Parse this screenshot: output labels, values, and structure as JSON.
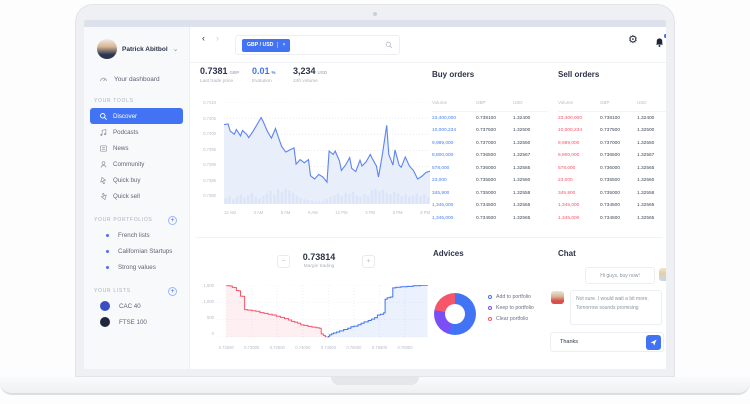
{
  "sidebar": {
    "user": {
      "name": "Patrick Abitbol"
    },
    "dashboard": {
      "label": "Your dashboard"
    },
    "sections": [
      {
        "title": "YOUR TOOLS",
        "add_button": false,
        "items": [
          {
            "label": "Discover",
            "icon": "search",
            "active": true
          },
          {
            "label": "Podcasts",
            "icon": "podcast"
          },
          {
            "label": "News",
            "icon": "news"
          },
          {
            "label": "Community",
            "icon": "community"
          },
          {
            "label": "Quick buy",
            "icon": "quick-buy"
          },
          {
            "label": "Quick sell",
            "icon": "quick-sell"
          }
        ]
      },
      {
        "title": "YOUR PORTFOLIOS",
        "add_button": true,
        "items": [
          {
            "label": "French lists",
            "bullet": "#4273f4"
          },
          {
            "label": "Californian Startups",
            "bullet": "#4273f4"
          },
          {
            "label": "Strong values",
            "bullet": "#4273f4"
          }
        ]
      },
      {
        "title": "YOUR LISTS",
        "add_button": true,
        "items": [
          {
            "label": "CAC 40",
            "swatch": "#3a4ec4"
          },
          {
            "label": "FTSE 100",
            "swatch": "#20263b"
          }
        ]
      }
    ]
  },
  "topbar": {
    "back": "‹",
    "forward": "›",
    "search": {
      "tag": "GBP / USD",
      "tag_close": "×"
    },
    "settings_glyph": "⚙"
  },
  "stats": [
    {
      "value": "0.7381",
      "unit": "GBP",
      "label": "Last trade price",
      "color": "#2d3448"
    },
    {
      "value": "0.01",
      "unit": "%",
      "label": "Evolution",
      "color": "#4273f4"
    },
    {
      "value": "3,234",
      "unit": "USD",
      "label": "24h volume",
      "color": "#2d3448"
    }
  ],
  "buy_orders": {
    "title": "Buy orders",
    "accent": "#4a7cf2",
    "columns": [
      "Volume",
      "GBP",
      "USD"
    ],
    "rows": [
      [
        "23,400,000",
        "0.738100",
        "1.32400"
      ],
      [
        "10,000,234",
        "0.737500",
        "1.32500"
      ],
      [
        "9,989,000",
        "0.737000",
        "1.32550"
      ],
      [
        "8,800,000",
        "0.736500",
        "1.32567"
      ],
      [
        "578,000",
        "0.736000",
        "1.32565"
      ],
      [
        "23,000",
        "0.735500",
        "1.32560"
      ],
      [
        "345,900",
        "0.735000",
        "1.32558"
      ],
      [
        "1,345,000",
        "0.734500",
        "1.32565"
      ],
      [
        "1,345,000",
        "0.734500",
        "1.32565"
      ]
    ]
  },
  "sell_orders": {
    "title": "Sell orders",
    "accent": "#f5566a",
    "columns": [
      "Volume",
      "GBP",
      "USD"
    ],
    "rows": [
      [
        "23,400,000",
        "0.738100",
        "1.32400"
      ],
      [
        "10,000,234",
        "0.737500",
        "1.32500"
      ],
      [
        "9,989,000",
        "0.737000",
        "1.32550"
      ],
      [
        "8,800,000",
        "0.736500",
        "1.32567"
      ],
      [
        "578,000",
        "0.736000",
        "1.32565"
      ],
      [
        "23,000",
        "0.735500",
        "1.32560"
      ],
      [
        "345,900",
        "0.735000",
        "1.32558"
      ],
      [
        "1,345,000",
        "0.734500",
        "1.32565"
      ],
      [
        "1,345,000",
        "0.734500",
        "1.32565"
      ]
    ]
  },
  "margin": {
    "value": "0.73814",
    "label": "Margin trading",
    "minus": "−",
    "plus": "+"
  },
  "advices": {
    "title": "Advices",
    "legend": [
      {
        "label": "Add to portfolio",
        "color": "#4273f4"
      },
      {
        "label": "Keep to portfolio",
        "color": "#7a4ff6"
      },
      {
        "label": "Clear portfolio",
        "color": "#f5566a"
      }
    ]
  },
  "chat": {
    "title": "Chat",
    "messages": [
      {
        "text": "Hi guys, buy now!",
        "side": "right",
        "avatar": "blonde"
      },
      {
        "text": "Not sure. I would wait a bit more. Tomorrow sounds promising",
        "side": "left",
        "avatar": "red-shirt"
      }
    ],
    "input_value": "Thanks"
  },
  "chart_data": [
    {
      "id": "price",
      "type": "area-line",
      "title": "GBP/USD intraday price",
      "line_color": "#5b83f2",
      "fill_color": "#e9eefb",
      "bar_color": "#dce5f8",
      "ylim": [
        0.738,
        0.741
      ],
      "y_ticks": [
        "0.7410",
        "0.7405",
        "0.7400",
        "0.7395",
        "0.7390",
        "0.7385",
        "0.7380"
      ],
      "x_ticks": [
        "12 AM",
        "3 AM",
        "6 AM",
        "9 AM",
        "12 PM",
        "3 PM",
        "6 PM",
        "9 PM"
      ],
      "points": [
        [
          0,
          0.7403
        ],
        [
          2,
          0.74032
        ],
        [
          3,
          0.7401
        ],
        [
          5,
          0.74
        ],
        [
          6,
          0.74015
        ],
        [
          8,
          0.73995
        ],
        [
          9,
          0.74012
        ],
        [
          11,
          0.74
        ],
        [
          12,
          0.7399
        ],
        [
          14,
          0.74008
        ],
        [
          16,
          0.7403
        ],
        [
          18,
          0.74052
        ],
        [
          19,
          0.7404
        ],
        [
          21,
          0.7401
        ],
        [
          23,
          0.73988
        ],
        [
          25,
          0.74018
        ],
        [
          26,
          0.73998
        ],
        [
          28,
          0.73962
        ],
        [
          30,
          0.73945
        ],
        [
          32,
          0.73952
        ],
        [
          34,
          0.73958
        ],
        [
          35,
          0.73908
        ],
        [
          37,
          0.73922
        ],
        [
          39,
          0.73912
        ],
        [
          41,
          0.73922
        ],
        [
          42,
          0.73872
        ],
        [
          44,
          0.73862
        ],
        [
          46,
          0.73876
        ],
        [
          48,
          0.73868
        ],
        [
          50,
          0.73852
        ],
        [
          51,
          0.73948
        ],
        [
          53,
          0.73938
        ],
        [
          54,
          0.73948
        ],
        [
          56,
          0.73918
        ],
        [
          57,
          0.73888
        ],
        [
          59,
          0.73905
        ],
        [
          61,
          0.73928
        ],
        [
          62,
          0.73895
        ],
        [
          64,
          0.73885
        ],
        [
          66,
          0.7392
        ],
        [
          67,
          0.73902
        ],
        [
          69,
          0.73915
        ],
        [
          71,
          0.73938
        ],
        [
          72,
          0.73925
        ],
        [
          74,
          0.73902
        ],
        [
          75,
          0.73868
        ],
        [
          77,
          0.73942
        ],
        [
          79,
          0.74028
        ],
        [
          80,
          0.73938
        ],
        [
          82,
          0.73905
        ],
        [
          83,
          0.73952
        ],
        [
          85,
          0.73905
        ],
        [
          86,
          0.73898
        ],
        [
          88,
          0.7393
        ],
        [
          90,
          0.73902
        ],
        [
          92,
          0.73888
        ],
        [
          94,
          0.73862
        ],
        [
          96,
          0.7387
        ],
        [
          98,
          0.73882
        ],
        [
          100,
          0.73886
        ]
      ],
      "volume_bars": [
        0.35,
        0.5,
        0.3,
        0.45,
        0.6,
        0.4,
        0.55,
        0.7,
        0.45,
        0.35,
        0.5,
        0.65,
        0.8,
        0.6,
        0.9,
        0.75,
        0.95,
        0.85,
        0.7,
        0.5,
        0.4,
        0.3,
        0.25,
        0.2,
        0.15,
        0.15,
        0.2,
        0.3,
        0.45,
        0.55,
        0.65,
        0.5,
        0.7,
        0.6,
        0.75,
        0.55,
        0.45,
        0.6,
        0.5,
        0.85,
        0.95,
        0.8,
        0.9,
        0.7,
        0.6,
        0.75,
        0.65,
        0.5,
        0.6,
        0.45,
        0.55,
        0.65,
        0.5,
        0.6,
        0.4
      ]
    },
    {
      "id": "depth",
      "type": "depth-step",
      "title": "Order book depth",
      "bid_color": "#f5566a",
      "ask_color": "#4273f4",
      "ylim": [
        0,
        1500
      ],
      "xlim": [
        0.723,
        0.7645
      ],
      "y_ticks": [
        "1,500",
        "1,000",
        "500",
        "0"
      ],
      "x_ticks": [
        "0.72500",
        "0.73000",
        "0.73500",
        "0.74000",
        "0.74500",
        "0.75000",
        "0.75500",
        "0.76000"
      ],
      "bids": [
        [
          0.725,
          1480
        ],
        [
          0.7258,
          1472
        ],
        [
          0.7262,
          1430
        ],
        [
          0.7266,
          1425
        ],
        [
          0.727,
          1340
        ],
        [
          0.7274,
          1330
        ],
        [
          0.7278,
          1180
        ],
        [
          0.7282,
          1170
        ],
        [
          0.7286,
          790
        ],
        [
          0.7292,
          775
        ],
        [
          0.73,
          755
        ],
        [
          0.7308,
          740
        ],
        [
          0.7316,
          705
        ],
        [
          0.7324,
          680
        ],
        [
          0.7332,
          655
        ],
        [
          0.734,
          635
        ],
        [
          0.7348,
          600
        ],
        [
          0.7356,
          565
        ],
        [
          0.7364,
          530
        ],
        [
          0.7372,
          490
        ],
        [
          0.7378,
          450
        ],
        [
          0.7384,
          430
        ],
        [
          0.739,
          395
        ],
        [
          0.7396,
          350
        ],
        [
          0.7402,
          335
        ],
        [
          0.741,
          305
        ],
        [
          0.7418,
          285
        ],
        [
          0.7426,
          265
        ],
        [
          0.7432,
          250
        ],
        [
          0.7436,
          90
        ],
        [
          0.744,
          45
        ],
        [
          0.7444,
          10
        ],
        [
          0.7446,
          0
        ]
      ],
      "asks": [
        [
          0.7448,
          0
        ],
        [
          0.745,
          15
        ],
        [
          0.7452,
          60
        ],
        [
          0.7456,
          90
        ],
        [
          0.746,
          115
        ],
        [
          0.7466,
          145
        ],
        [
          0.7472,
          175
        ],
        [
          0.748,
          215
        ],
        [
          0.7488,
          255
        ],
        [
          0.7494,
          295
        ],
        [
          0.75,
          315
        ],
        [
          0.7508,
          355
        ],
        [
          0.7514,
          395
        ],
        [
          0.752,
          435
        ],
        [
          0.7528,
          475
        ],
        [
          0.7534,
          515
        ],
        [
          0.754,
          555
        ],
        [
          0.7546,
          635
        ],
        [
          0.7552,
          655
        ],
        [
          0.7558,
          695
        ],
        [
          0.7561,
          1090
        ],
        [
          0.7565,
          1135
        ],
        [
          0.7571,
          1155
        ],
        [
          0.7576,
          1415
        ],
        [
          0.7582,
          1435
        ],
        [
          0.7592,
          1450
        ],
        [
          0.7604,
          1460
        ],
        [
          0.7616,
          1478
        ],
        [
          0.763,
          1490
        ],
        [
          0.7644,
          1495
        ]
      ]
    },
    {
      "id": "advices-donut",
      "type": "donut",
      "title": "Advices",
      "slices": [
        {
          "label": "Add to portfolio",
          "value": 55,
          "color": "#4273f4"
        },
        {
          "label": "Keep to portfolio",
          "value": 23,
          "color": "#7a4ff6"
        },
        {
          "label": "Clear portfolio",
          "value": 22,
          "color": "#f5566a"
        }
      ]
    }
  ]
}
